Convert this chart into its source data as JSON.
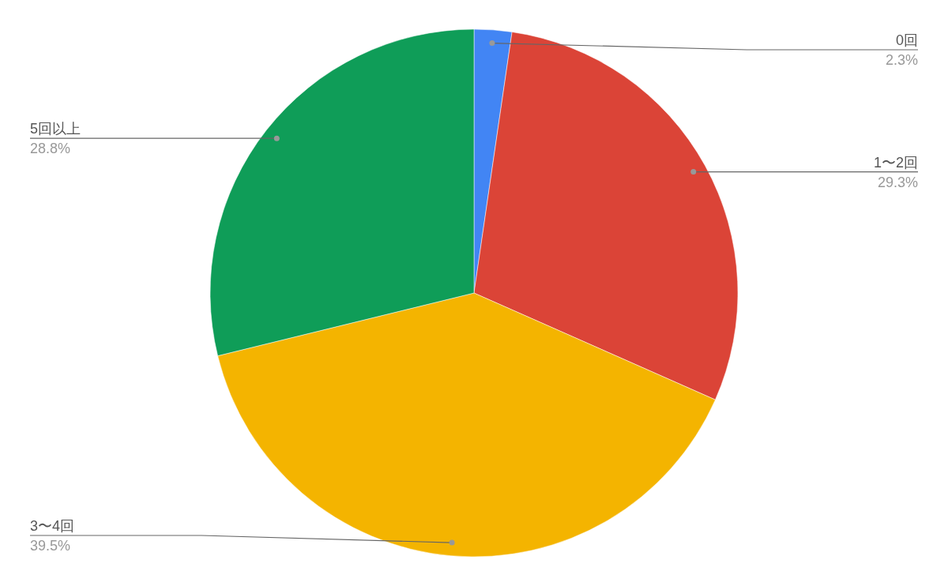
{
  "chart_data": {
    "type": "pie",
    "categories": [
      "0回",
      "1〜2回",
      "3〜4回",
      "5回以上"
    ],
    "values": [
      2.3,
      29.3,
      39.5,
      28.8
    ],
    "colors": [
      "#4285f4",
      "#db4437",
      "#f4b400",
      "#0f9d58"
    ],
    "value_labels": [
      "2.3%",
      "29.3%",
      "39.5%",
      "28.8%"
    ]
  }
}
